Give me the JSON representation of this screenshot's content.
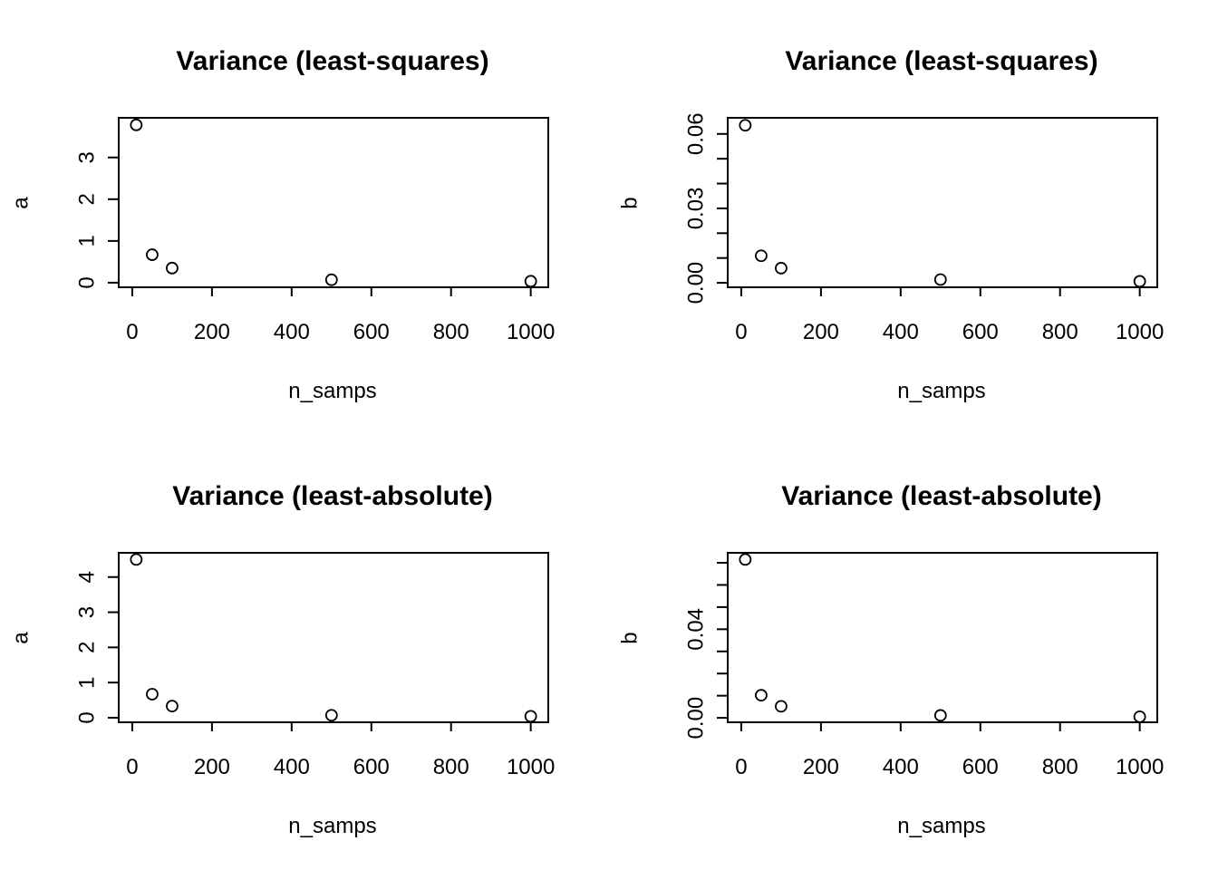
{
  "chart_data": [
    {
      "type": "scatter",
      "title": "Variance (least-squares)",
      "xlabel": "n_samps",
      "ylabel": "a",
      "x": [
        10,
        50,
        100,
        500,
        1000
      ],
      "y": [
        3.78,
        0.67,
        0.35,
        0.07,
        0.035
      ],
      "xlim": [
        -34,
        1044
      ],
      "ylim": [
        -0.11,
        3.95
      ],
      "xticks": [
        0,
        200,
        400,
        600,
        800,
        1000
      ],
      "xtick_labels": [
        "0",
        "200",
        "400",
        "600",
        "800",
        "1000"
      ],
      "yticks": [
        0,
        1,
        2,
        3
      ],
      "ytick_labels": [
        "0",
        "1",
        "2",
        "3"
      ],
      "grid": false
    },
    {
      "type": "scatter",
      "title": "Variance (least-squares)",
      "xlabel": "n_samps",
      "ylabel": "b",
      "x": [
        10,
        50,
        100,
        500,
        1000
      ],
      "y": [
        0.0635,
        0.0109,
        0.0059,
        0.0013,
        0.0006
      ],
      "xlim": [
        -34,
        1044
      ],
      "ylim": [
        -0.0018,
        0.0665
      ],
      "xticks": [
        0,
        200,
        400,
        600,
        800,
        1000
      ],
      "xtick_labels": [
        "0",
        "200",
        "400",
        "600",
        "800",
        "1000"
      ],
      "yticks": [
        0,
        0.01,
        0.02,
        0.03,
        0.04,
        0.05,
        0.06
      ],
      "ytick_labels": [
        "0.00",
        "",
        "",
        "0.03",
        "",
        "",
        "0.06"
      ],
      "grid": false
    },
    {
      "type": "scatter",
      "title": "Variance (least-absolute)",
      "xlabel": "n_samps",
      "ylabel": "a",
      "x": [
        10,
        50,
        100,
        500,
        1000
      ],
      "y": [
        4.5,
        0.67,
        0.33,
        0.07,
        0.04
      ],
      "xlim": [
        -34,
        1044
      ],
      "ylim": [
        -0.13,
        4.69
      ],
      "xticks": [
        0,
        200,
        400,
        600,
        800,
        1000
      ],
      "xtick_labels": [
        "0",
        "200",
        "400",
        "600",
        "800",
        "1000"
      ],
      "yticks": [
        0,
        1,
        2,
        3,
        4
      ],
      "ytick_labels": [
        "0",
        "1",
        "2",
        "3",
        "4"
      ],
      "grid": false
    },
    {
      "type": "scatter",
      "title": "Variance (least-absolute)",
      "xlabel": "n_samps",
      "ylabel": "b",
      "x": [
        10,
        50,
        100,
        500,
        1000
      ],
      "y": [
        0.0715,
        0.0102,
        0.0052,
        0.0011,
        0.0005
      ],
      "xlim": [
        -0.002,
        0.0745
      ],
      "ylim": [
        -0.002,
        0.0745
      ],
      "xticks": [
        0,
        200,
        400,
        600,
        800,
        1000
      ],
      "xtick_labels": [
        "0",
        "200",
        "400",
        "600",
        "800",
        "1000"
      ],
      "yticks": [
        0,
        0.01,
        0.02,
        0.03,
        0.04,
        0.05,
        0.06,
        0.07
      ],
      "ytick_labels": [
        "0.00",
        "",
        "",
        "",
        "0.04",
        "",
        "",
        ""
      ],
      "grid": false
    }
  ]
}
